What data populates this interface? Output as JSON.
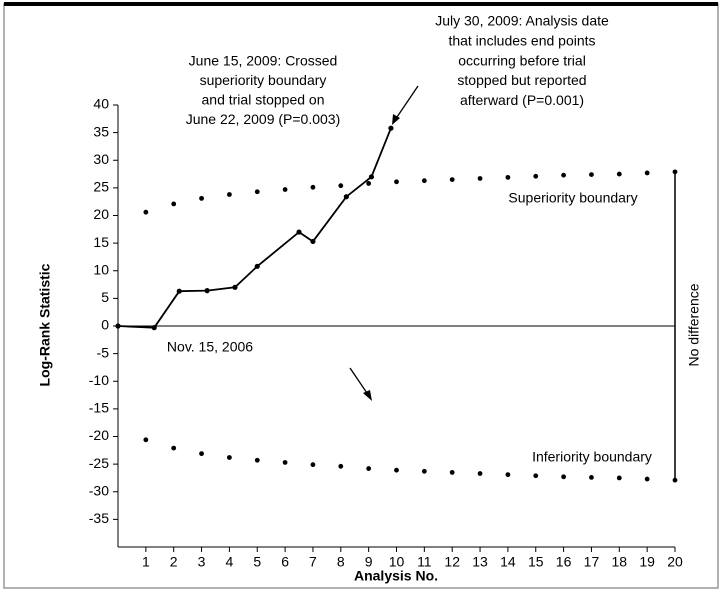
{
  "chart_data": {
    "type": "line",
    "xlabel": "Analysis No.",
    "ylabel": "Log-Rank Statistic",
    "xlim": [
      0,
      20
    ],
    "xticks": [
      1,
      2,
      3,
      4,
      5,
      6,
      7,
      8,
      9,
      10,
      11,
      12,
      13,
      14,
      15,
      16,
      17,
      18,
      19,
      20
    ],
    "ylim": [
      -40,
      40
    ],
    "yticks": [
      -35,
      -30,
      -25,
      -20,
      -15,
      -10,
      -5,
      0,
      5,
      10,
      15,
      20,
      25,
      30,
      35,
      40
    ],
    "series": [
      {
        "color": "#000000",
        "style": "line",
        "x": [
          0,
          1.3,
          2.2,
          3.2,
          4.2,
          5,
          6.5,
          7,
          8.2,
          9.1,
          9.8
        ],
        "values": [
          0,
          -0.3,
          6.3,
          6.4,
          7,
          10.8,
          17,
          15.3,
          23.4,
          27,
          35.8
        ]
      },
      {
        "name": "Superiority boundary",
        "color": "#000000",
        "style": "dots",
        "x": [
          1,
          2,
          3,
          4,
          5,
          6,
          7,
          8,
          9,
          10,
          11,
          12,
          13,
          14,
          15,
          16,
          17,
          18,
          19,
          20
        ],
        "values": [
          20.6,
          22.1,
          23.1,
          23.8,
          24.3,
          24.7,
          25.1,
          25.4,
          25.8,
          26.1,
          26.3,
          26.5,
          26.7,
          26.9,
          27.1,
          27.3,
          27.4,
          27.5,
          27.7,
          27.9
        ]
      },
      {
        "name": "Inferiority boundary",
        "color": "#000000",
        "style": "dots",
        "x": [
          1,
          2,
          3,
          4,
          5,
          6,
          7,
          8,
          9,
          10,
          11,
          12,
          13,
          14,
          15,
          16,
          17,
          18,
          19,
          20
        ],
        "values": [
          -20.6,
          -22.1,
          -23.1,
          -23.8,
          -24.3,
          -24.7,
          -25.1,
          -25.4,
          -25.8,
          -26.1,
          -26.3,
          -26.5,
          -26.7,
          -26.9,
          -27.1,
          -27.3,
          -27.4,
          -27.5,
          -27.7,
          -27.9
        ]
      }
    ],
    "annotations": [
      {
        "lines": [
          "June 15, 2009: Crossed",
          "superiority boundary",
          "and trial stopped on",
          "June 22, 2009 (P=0.003)"
        ]
      },
      {
        "lines": [
          "July 30, 2009: Analysis date",
          "that includes end points",
          "occurring before trial",
          "stopped but reported",
          "afterward (P=0.001)"
        ]
      },
      {
        "lines": [
          "Nov. 15, 2006"
        ]
      },
      {
        "lines": [
          "No difference"
        ]
      }
    ]
  }
}
